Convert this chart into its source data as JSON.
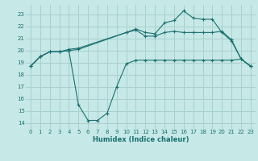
{
  "xlabel": "Humidex (Indice chaleur)",
  "bg_color": "#c6e8e6",
  "grid_color": "#a8d0ce",
  "line_color": "#1a7070",
  "xlim": [
    -0.5,
    23.5
  ],
  "ylim": [
    13.5,
    23.8
  ],
  "yticks": [
    14,
    15,
    16,
    17,
    18,
    19,
    20,
    21,
    22,
    23
  ],
  "xticks": [
    0,
    1,
    2,
    3,
    4,
    5,
    6,
    7,
    8,
    9,
    10,
    11,
    12,
    13,
    14,
    15,
    16,
    17,
    18,
    19,
    20,
    21,
    22,
    23
  ],
  "line1_x": [
    0,
    1,
    2,
    3,
    4,
    5,
    6,
    7,
    8,
    9,
    10,
    11,
    12,
    13,
    14,
    15,
    16,
    17,
    18,
    19,
    20,
    21,
    22,
    23
  ],
  "line1_y": [
    18.7,
    19.5,
    19.9,
    19.9,
    20.0,
    15.5,
    14.2,
    14.2,
    14.8,
    17.0,
    18.9,
    19.2,
    19.2,
    19.2,
    19.2,
    19.2,
    19.2,
    19.2,
    19.2,
    19.2,
    19.2,
    19.2,
    19.3,
    18.7
  ],
  "line2_x": [
    0,
    1,
    2,
    3,
    4,
    5,
    10,
    11,
    12,
    13,
    14,
    15,
    16,
    17,
    18,
    19,
    20,
    21,
    22,
    23
  ],
  "line2_y": [
    18.7,
    19.5,
    19.9,
    19.9,
    20.0,
    20.1,
    21.5,
    21.8,
    21.5,
    21.4,
    22.3,
    22.5,
    23.3,
    22.7,
    22.6,
    22.6,
    21.5,
    20.8,
    19.3,
    18.7
  ],
  "line3_x": [
    0,
    1,
    2,
    3,
    4,
    5,
    10,
    11,
    12,
    13,
    14,
    15,
    16,
    17,
    18,
    19,
    20,
    21,
    22,
    23
  ],
  "line3_y": [
    18.7,
    19.5,
    19.9,
    19.9,
    20.1,
    20.2,
    21.5,
    21.7,
    21.2,
    21.2,
    21.5,
    21.6,
    21.5,
    21.5,
    21.5,
    21.5,
    21.6,
    20.9,
    19.3,
    18.7
  ]
}
